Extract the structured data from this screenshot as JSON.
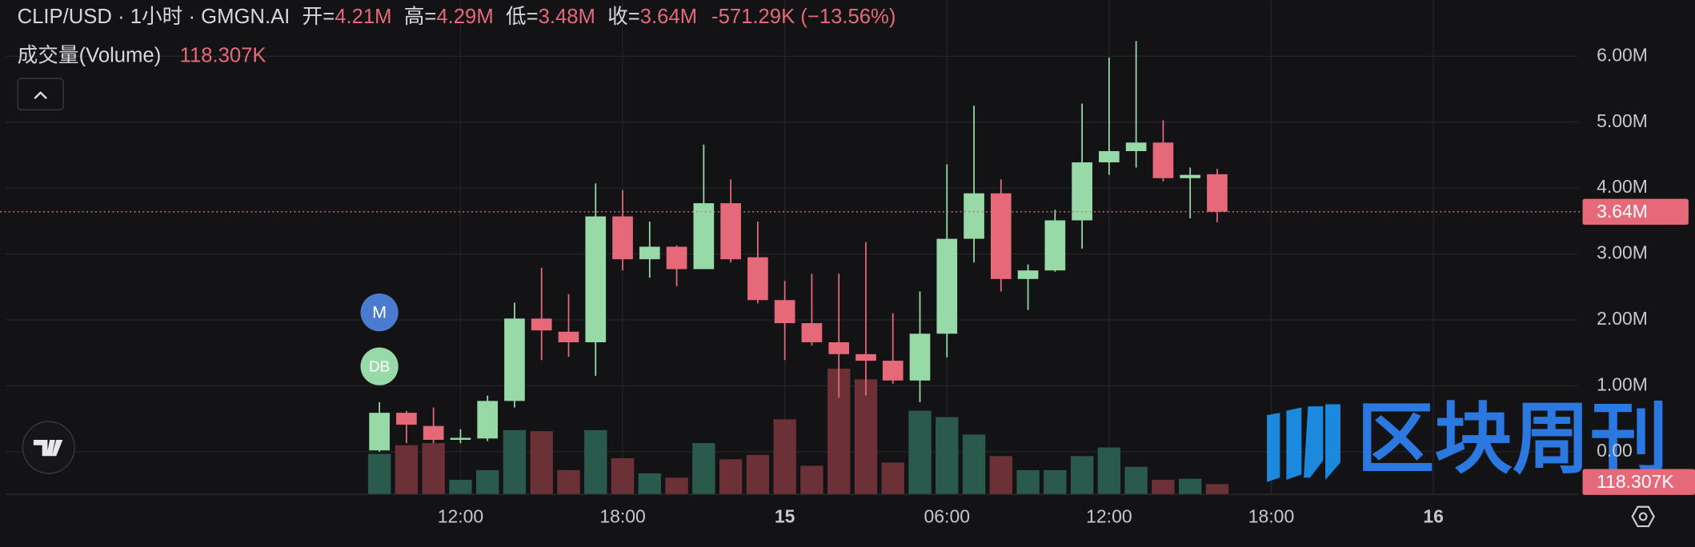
{
  "chart_data": {
    "type": "candlestick",
    "title": "CLIP/USD · 1小时 · GMGN.AI",
    "header": {
      "ohlc": [
        {
          "label": "开=",
          "value": "4.21M"
        },
        {
          "label": "高=",
          "value": "4.29M"
        },
        {
          "label": "低=",
          "value": "3.48M"
        },
        {
          "label": "收=",
          "value": "3.64M"
        }
      ],
      "change": "-571.29K (−13.56%)"
    },
    "volume_title": "成交量(Volume)",
    "volume_last_label": "118.307K",
    "x": [
      9,
      10,
      11,
      12,
      13,
      14,
      15,
      16,
      17,
      18,
      19,
      20,
      21,
      22,
      23,
      24,
      25,
      26,
      27,
      28,
      29,
      30,
      31,
      32,
      33,
      34,
      35,
      36,
      37,
      38,
      39,
      40
    ],
    "open": [
      0.02,
      0.59,
      0.39,
      0.18,
      0.2,
      0.77,
      2.02,
      1.82,
      1.66,
      3.57,
      2.92,
      3.11,
      2.77,
      3.77,
      2.95,
      2.3,
      1.95,
      1.66,
      1.48,
      1.38,
      1.08,
      1.79,
      3.23,
      3.92,
      2.62,
      2.75,
      3.51,
      4.39,
      4.56,
      4.69,
      4.15,
      4.21
    ],
    "high": [
      0.75,
      0.62,
      0.67,
      0.34,
      0.85,
      2.26,
      2.79,
      2.39,
      4.07,
      3.97,
      3.49,
      3.13,
      4.66,
      4.13,
      3.49,
      2.59,
      2.7,
      2.7,
      3.18,
      2.1,
      2.43,
      4.36,
      5.25,
      4.13,
      2.84,
      3.67,
      5.28,
      5.98,
      6.23,
      5.03,
      4.31,
      4.29
    ],
    "low": [
      0.0,
      0.13,
      0.13,
      0.13,
      0.16,
      0.67,
      1.39,
      1.44,
      1.15,
      2.75,
      2.64,
      2.51,
      2.77,
      2.87,
      2.25,
      1.39,
      1.61,
      0.82,
      0.85,
      1.03,
      0.75,
      1.43,
      2.87,
      2.43,
      2.15,
      2.73,
      3.08,
      4.2,
      4.31,
      4.1,
      3.54,
      3.48
    ],
    "close": [
      0.59,
      0.41,
      0.18,
      0.21,
      0.77,
      2.02,
      1.84,
      1.66,
      3.57,
      2.92,
      3.11,
      2.77,
      3.77,
      2.92,
      2.3,
      1.95,
      1.66,
      1.48,
      1.38,
      1.08,
      1.79,
      3.23,
      3.92,
      2.62,
      2.75,
      3.51,
      4.39,
      4.56,
      4.69,
      4.15,
      4.2,
      3.64
    ],
    "volume": [
      487,
      592,
      618,
      171,
      289,
      776,
      763,
      289,
      776,
      434,
      250,
      197,
      618,
      421,
      473,
      907,
      342,
      1525,
      1394,
      381,
      1012,
      934,
      723,
      460,
      289,
      289,
      460,
      565,
      329,
      171,
      184,
      118.307
    ],
    "up_color": "#98d9a8",
    "down_color": "#e6697a",
    "volume_up_color": "#2a5a4b",
    "volume_down_color": "#6b3136",
    "xlim": [
      -4.84,
      53.36
    ],
    "xticks": [
      {
        "value": 12,
        "label": "12:00"
      },
      {
        "value": 18,
        "label": "18:00"
      },
      {
        "value": 24,
        "label": "15"
      },
      {
        "value": 30,
        "label": "06:00"
      },
      {
        "value": 36,
        "label": "12:00"
      },
      {
        "value": 42,
        "label": "18:00"
      },
      {
        "value": 48,
        "label": "16"
      }
    ],
    "ylim": [
      -0.64,
      6.85
    ],
    "yticks": [
      {
        "value": 0,
        "label": "0.00"
      },
      {
        "value": 1,
        "label": "1.00M"
      },
      {
        "value": 2,
        "label": "2.00M"
      },
      {
        "value": 3,
        "label": "3.00M"
      },
      {
        "value": 4,
        "label": "4.00M"
      },
      {
        "value": 5,
        "label": "5.00M"
      },
      {
        "value": 6,
        "label": "6.00M"
      }
    ],
    "y2lim": [
      0,
      6010
    ],
    "last_price": {
      "value": 3.64,
      "label": "3.64M"
    },
    "grid": true,
    "markers": [
      "M",
      "DB"
    ],
    "watermark": "区块周刊"
  }
}
